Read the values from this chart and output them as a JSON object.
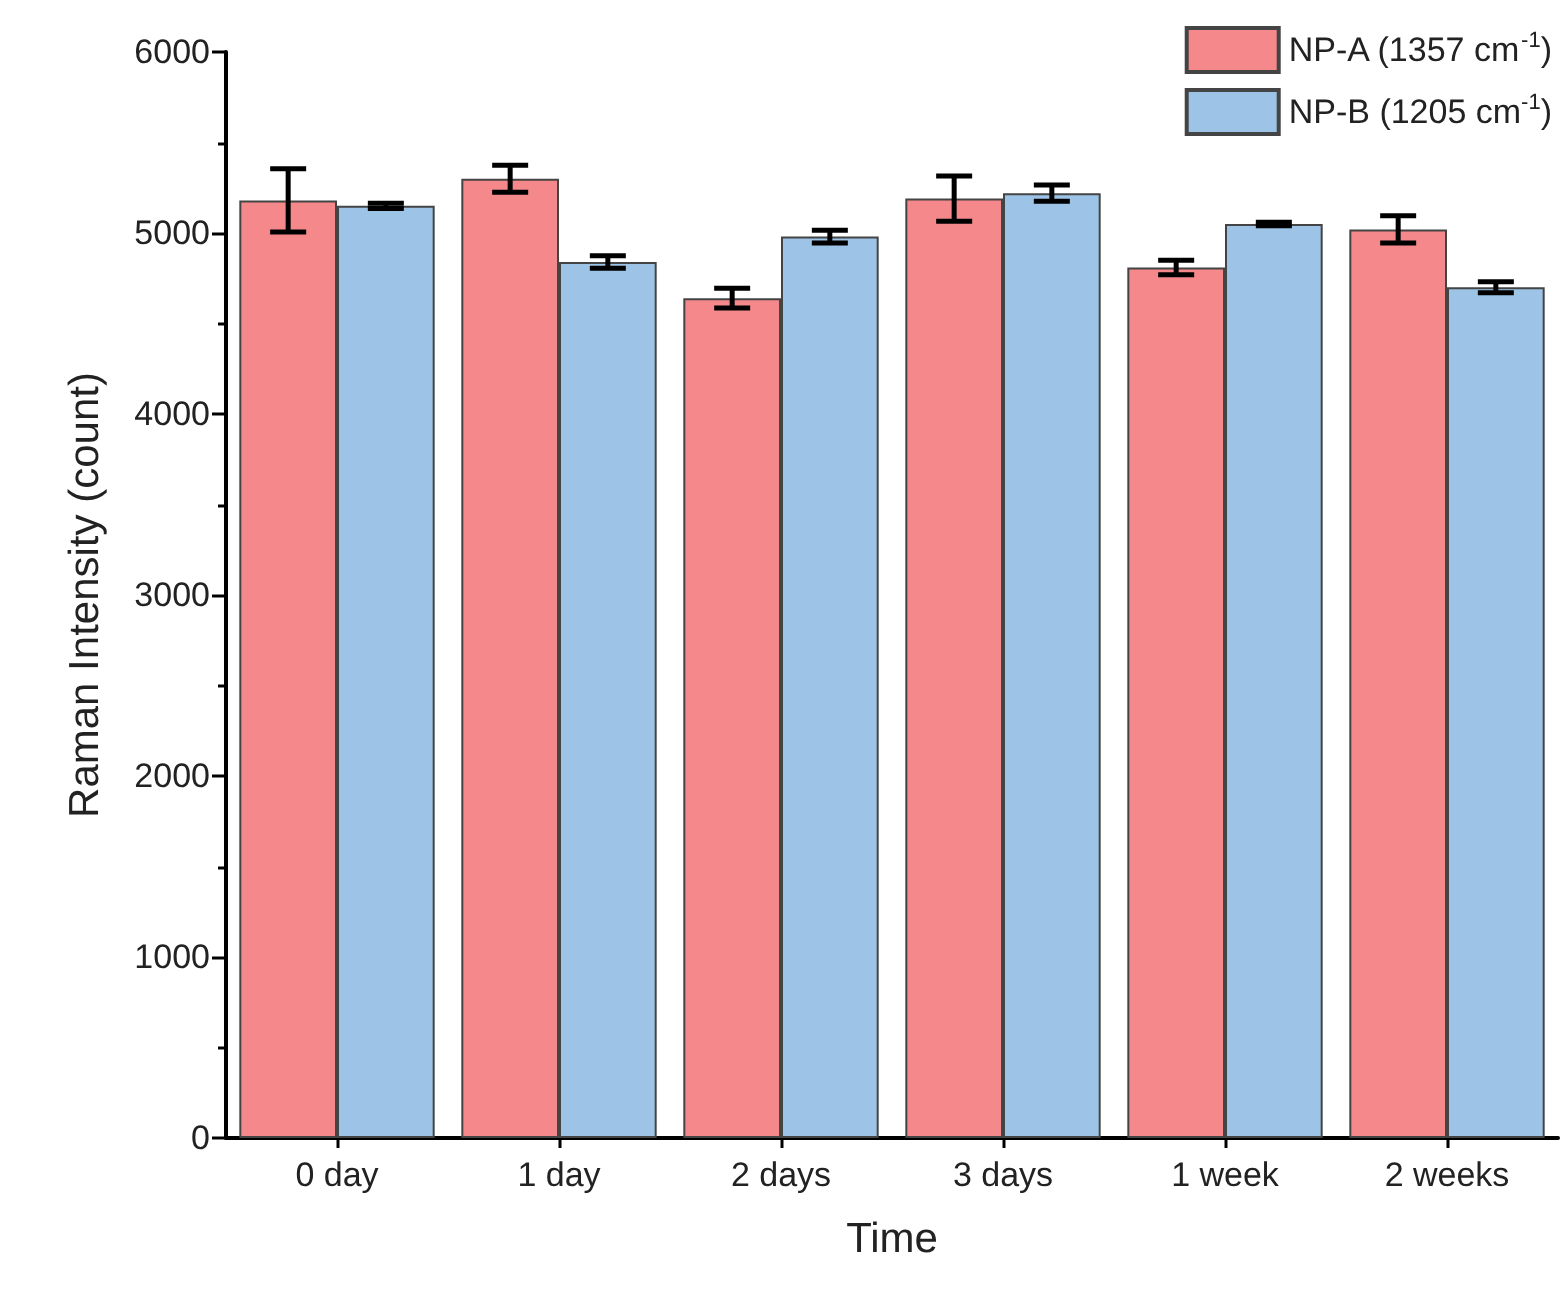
{
  "chart_data": {
    "type": "bar",
    "xlabel": "Time",
    "ylabel": "Raman Intensity (count)",
    "categories": [
      "0 day",
      "1 day",
      "2 days",
      "3 days",
      "1 week",
      "2 weeks"
    ],
    "series": [
      {
        "name": "NP-A (1357 cm$^{-1}$)",
        "color": "#f4888a",
        "values": [
          5180,
          5300,
          4640,
          5190,
          4810,
          5020
        ],
        "errors": [
          175,
          75,
          55,
          125,
          40,
          75
        ]
      },
      {
        "name": "NP-B (1205 cm$^{-1}$)",
        "color": "#9dc3e6",
        "values": [
          5150,
          4840,
          4980,
          5220,
          5050,
          4700
        ],
        "errors": [
          15,
          35,
          35,
          45,
          10,
          30
        ]
      }
    ],
    "ylim": [
      0,
      6000
    ],
    "yticks": [
      0,
      1000,
      2000,
      3000,
      4000,
      5000,
      6000
    ],
    "grid": false,
    "legend": "top right"
  }
}
